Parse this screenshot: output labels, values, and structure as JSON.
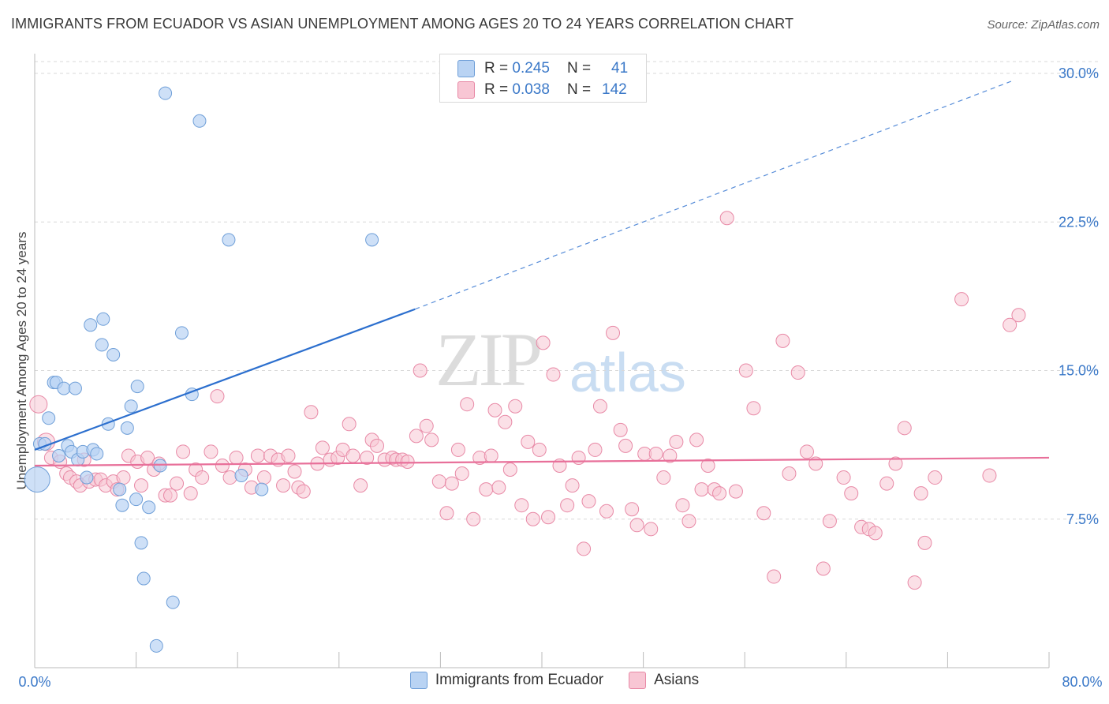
{
  "header": {
    "title": "IMMIGRANTS FROM ECUADOR VS ASIAN UNEMPLOYMENT AMONG AGES 20 TO 24 YEARS CORRELATION CHART",
    "source": "Source: ZipAtlas.com"
  },
  "watermark": {
    "left": "ZIP",
    "right": "atlas"
  },
  "legend": {
    "rows": [
      {
        "r_label": "R =",
        "r_value": "0.245",
        "n_label": "N =",
        "n_value": "41"
      },
      {
        "r_label": "R =",
        "r_value": "0.038",
        "n_label": "N =",
        "n_value": "142"
      }
    ]
  },
  "colors": {
    "ecuador_fill": "#b9d3f3",
    "ecuador_stroke": "#6f9fd8",
    "ecuador_line": "#2c6fce",
    "asian_fill": "#f8c6d4",
    "asian_stroke": "#e889a6",
    "asian_line": "#e8709a",
    "tick_text": "#3a78c8",
    "grid": "#d8d8d8"
  },
  "chart_data": {
    "type": "scatter",
    "title": "IMMIGRANTS FROM ECUADOR VS ASIAN UNEMPLOYMENT AMONG AGES 20 TO 24 YEARS CORRELATION CHART",
    "xlabel": "",
    "ylabel": "Unemployment Among Ages 20 to 24 years",
    "xlim": [
      0,
      80
    ],
    "ylim": [
      0,
      30.6
    ],
    "x_tick_labels": [
      "0.0%",
      "80.0%"
    ],
    "y_ticks": [
      7.5,
      15.0,
      22.5,
      30.0
    ],
    "y_tick_labels": [
      "7.5%",
      "15.0%",
      "22.5%",
      "30.0%"
    ],
    "grid": "horizontal dashed",
    "legend_position": "bottom-center",
    "series": [
      {
        "name": "Immigrants from Ecuador",
        "r": 0.245,
        "n": 41,
        "trend": {
          "x0": 0.0,
          "y0": 11.0,
          "x1": 30.0,
          "y1": 18.1,
          "extend_to_x": 77.0,
          "extend_to_y": 29.6
        },
        "points": [
          [
            0.2,
            9.5
          ],
          [
            0.4,
            11.3
          ],
          [
            0.8,
            11.3
          ],
          [
            1.1,
            12.6
          ],
          [
            1.5,
            14.4
          ],
          [
            1.7,
            14.4
          ],
          [
            1.9,
            10.7
          ],
          [
            2.3,
            14.1
          ],
          [
            2.6,
            11.2
          ],
          [
            2.9,
            10.9
          ],
          [
            3.2,
            14.1
          ],
          [
            3.4,
            10.5
          ],
          [
            3.8,
            10.9
          ],
          [
            4.1,
            9.6
          ],
          [
            4.4,
            17.3
          ],
          [
            4.6,
            11.0
          ],
          [
            4.9,
            10.8
          ],
          [
            5.4,
            17.6
          ],
          [
            5.3,
            16.3
          ],
          [
            5.8,
            12.3
          ],
          [
            6.2,
            15.8
          ],
          [
            6.7,
            9.0
          ],
          [
            6.9,
            8.2
          ],
          [
            7.3,
            12.1
          ],
          [
            7.6,
            13.2
          ],
          [
            8.1,
            14.2
          ],
          [
            8.0,
            8.5
          ],
          [
            8.4,
            6.3
          ],
          [
            8.6,
            4.5
          ],
          [
            9.0,
            8.1
          ],
          [
            9.6,
            1.1
          ],
          [
            9.9,
            10.2
          ],
          [
            10.3,
            29.0
          ],
          [
            10.9,
            3.3
          ],
          [
            11.6,
            16.9
          ],
          [
            12.4,
            13.8
          ],
          [
            13.0,
            27.6
          ],
          [
            15.3,
            21.6
          ],
          [
            16.3,
            9.7
          ],
          [
            17.9,
            9.0
          ],
          [
            26.6,
            21.6
          ]
        ]
      },
      {
        "name": "Asians",
        "r": 0.038,
        "n": 142,
        "trend": {
          "x0": 0.0,
          "y0": 10.2,
          "x1": 80.0,
          "y1": 10.6
        },
        "points": [
          [
            0.3,
            13.3
          ],
          [
            0.9,
            11.4
          ],
          [
            1.3,
            10.6
          ],
          [
            2.0,
            10.4
          ],
          [
            2.5,
            9.8
          ],
          [
            2.8,
            9.6
          ],
          [
            3.3,
            9.4
          ],
          [
            3.6,
            9.2
          ],
          [
            3.9,
            10.5
          ],
          [
            4.3,
            9.4
          ],
          [
            4.8,
            9.5
          ],
          [
            5.2,
            9.5
          ],
          [
            5.6,
            9.2
          ],
          [
            6.2,
            9.4
          ],
          [
            6.5,
            9.0
          ],
          [
            7.0,
            9.6
          ],
          [
            7.4,
            10.7
          ],
          [
            8.1,
            10.4
          ],
          [
            8.4,
            9.2
          ],
          [
            8.9,
            10.6
          ],
          [
            9.4,
            10.0
          ],
          [
            9.8,
            10.3
          ],
          [
            10.3,
            8.7
          ],
          [
            10.7,
            8.7
          ],
          [
            11.2,
            9.3
          ],
          [
            11.7,
            10.9
          ],
          [
            12.3,
            8.8
          ],
          [
            12.7,
            10.0
          ],
          [
            13.2,
            9.6
          ],
          [
            13.9,
            10.9
          ],
          [
            14.4,
            13.7
          ],
          [
            14.8,
            10.2
          ],
          [
            15.4,
            9.6
          ],
          [
            15.9,
            10.6
          ],
          [
            16.6,
            10.0
          ],
          [
            17.1,
            9.1
          ],
          [
            17.6,
            10.7
          ],
          [
            18.1,
            9.6
          ],
          [
            18.6,
            10.7
          ],
          [
            19.2,
            10.5
          ],
          [
            19.6,
            9.2
          ],
          [
            20.0,
            10.7
          ],
          [
            20.5,
            9.9
          ],
          [
            20.8,
            9.1
          ],
          [
            21.2,
            8.9
          ],
          [
            21.8,
            12.9
          ],
          [
            22.3,
            10.3
          ],
          [
            22.7,
            11.1
          ],
          [
            23.3,
            10.5
          ],
          [
            23.9,
            10.6
          ],
          [
            24.3,
            11.0
          ],
          [
            24.8,
            12.3
          ],
          [
            25.1,
            10.7
          ],
          [
            25.7,
            9.2
          ],
          [
            26.2,
            10.6
          ],
          [
            26.6,
            11.5
          ],
          [
            27.0,
            11.2
          ],
          [
            27.6,
            10.5
          ],
          [
            28.2,
            10.6
          ],
          [
            28.5,
            10.5
          ],
          [
            29.0,
            10.5
          ],
          [
            29.4,
            10.4
          ],
          [
            30.1,
            11.7
          ],
          [
            30.4,
            15.0
          ],
          [
            30.9,
            12.2
          ],
          [
            31.3,
            11.5
          ],
          [
            31.9,
            9.4
          ],
          [
            32.5,
            7.8
          ],
          [
            32.9,
            9.3
          ],
          [
            33.4,
            11.0
          ],
          [
            33.7,
            9.8
          ],
          [
            34.1,
            13.3
          ],
          [
            34.6,
            7.5
          ],
          [
            35.1,
            10.6
          ],
          [
            35.6,
            9.0
          ],
          [
            36.0,
            10.7
          ],
          [
            36.3,
            13.0
          ],
          [
            36.6,
            9.1
          ],
          [
            37.1,
            12.4
          ],
          [
            37.5,
            10.0
          ],
          [
            37.9,
            13.2
          ],
          [
            38.4,
            8.2
          ],
          [
            38.9,
            11.4
          ],
          [
            39.3,
            7.5
          ],
          [
            39.8,
            11.0
          ],
          [
            40.1,
            16.4
          ],
          [
            40.5,
            7.6
          ],
          [
            40.9,
            14.8
          ],
          [
            41.4,
            10.2
          ],
          [
            42.0,
            8.2
          ],
          [
            42.4,
            9.2
          ],
          [
            42.9,
            10.6
          ],
          [
            43.3,
            6.0
          ],
          [
            43.7,
            8.4
          ],
          [
            44.2,
            11.0
          ],
          [
            44.6,
            13.2
          ],
          [
            45.1,
            7.9
          ],
          [
            45.6,
            16.9
          ],
          [
            46.2,
            12.0
          ],
          [
            46.6,
            11.2
          ],
          [
            47.1,
            8.0
          ],
          [
            47.5,
            7.2
          ],
          [
            48.1,
            10.8
          ],
          [
            48.6,
            7.0
          ],
          [
            49.0,
            10.8
          ],
          [
            49.6,
            9.6
          ],
          [
            50.1,
            10.7
          ],
          [
            50.6,
            11.4
          ],
          [
            51.1,
            8.2
          ],
          [
            51.6,
            7.4
          ],
          [
            52.2,
            11.5
          ],
          [
            52.6,
            9.0
          ],
          [
            53.1,
            10.2
          ],
          [
            53.6,
            9.0
          ],
          [
            54.0,
            8.8
          ],
          [
            54.6,
            22.7
          ],
          [
            55.3,
            8.9
          ],
          [
            56.1,
            15.0
          ],
          [
            56.7,
            13.1
          ],
          [
            57.5,
            7.8
          ],
          [
            58.3,
            4.6
          ],
          [
            59.0,
            16.5
          ],
          [
            59.5,
            9.8
          ],
          [
            60.2,
            14.9
          ],
          [
            60.9,
            10.9
          ],
          [
            61.6,
            10.3
          ],
          [
            62.2,
            5.0
          ],
          [
            62.7,
            7.4
          ],
          [
            63.8,
            9.6
          ],
          [
            64.4,
            8.8
          ],
          [
            65.2,
            7.1
          ],
          [
            65.8,
            7.0
          ],
          [
            66.3,
            6.8
          ],
          [
            67.2,
            9.3
          ],
          [
            67.9,
            10.3
          ],
          [
            68.6,
            12.1
          ],
          [
            69.4,
            4.3
          ],
          [
            69.9,
            8.8
          ],
          [
            70.2,
            6.3
          ],
          [
            71.0,
            9.6
          ],
          [
            73.1,
            18.6
          ],
          [
            75.3,
            9.7
          ],
          [
            76.9,
            17.3
          ],
          [
            77.6,
            17.8
          ]
        ]
      }
    ]
  },
  "bottom_legend": {
    "items": [
      {
        "label": "Immigrants from Ecuador"
      },
      {
        "label": "Asians"
      }
    ]
  }
}
